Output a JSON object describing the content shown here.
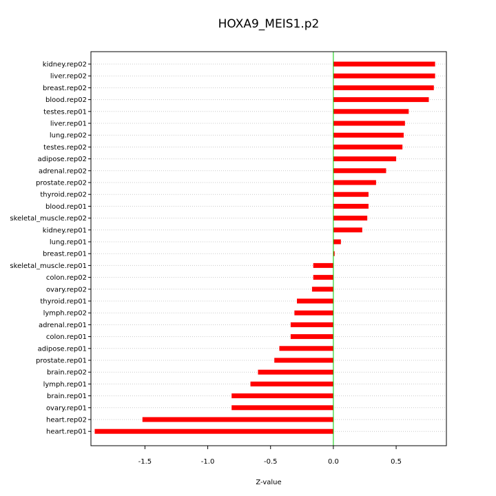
{
  "chart_data": {
    "type": "bar",
    "orientation": "horizontal",
    "title": "HOXA9_MEIS1.p2",
    "xlabel": "Z-value",
    "ylabel": "",
    "xlim": [
      -1.93,
      0.9
    ],
    "xticks": [
      -1.5,
      -1.0,
      -0.5,
      0.0,
      0.5
    ],
    "xtick_labels": [
      "-1.5",
      "-1.0",
      "-0.5",
      "0.0",
      "0.5"
    ],
    "grid": true,
    "bar_color": "#ff0000",
    "zero_line_color": "#00cc00",
    "categories": [
      "kidney.rep02",
      "liver.rep02",
      "breast.rep02",
      "blood.rep02",
      "testes.rep01",
      "liver.rep01",
      "lung.rep02",
      "testes.rep02",
      "adipose.rep02",
      "adrenal.rep02",
      "prostate.rep02",
      "thyroid.rep02",
      "blood.rep01",
      "skeletal_muscle.rep02",
      "kidney.rep01",
      "lung.rep01",
      "breast.rep01",
      "skeletal_muscle.rep01",
      "colon.rep02",
      "ovary.rep02",
      "thyroid.rep01",
      "lymph.rep02",
      "adrenal.rep01",
      "colon.rep01",
      "adipose.rep01",
      "prostate.rep01",
      "brain.rep02",
      "lymph.rep01",
      "brain.rep01",
      "ovary.rep01",
      "heart.rep02",
      "heart.rep01"
    ],
    "values": [
      0.81,
      0.81,
      0.8,
      0.76,
      0.6,
      0.57,
      0.56,
      0.55,
      0.5,
      0.42,
      0.34,
      0.28,
      0.28,
      0.27,
      0.23,
      0.06,
      0.01,
      -0.16,
      -0.16,
      -0.17,
      -0.29,
      -0.31,
      -0.34,
      -0.34,
      -0.43,
      -0.47,
      -0.6,
      -0.66,
      -0.81,
      -0.81,
      -1.52,
      -1.9
    ]
  }
}
